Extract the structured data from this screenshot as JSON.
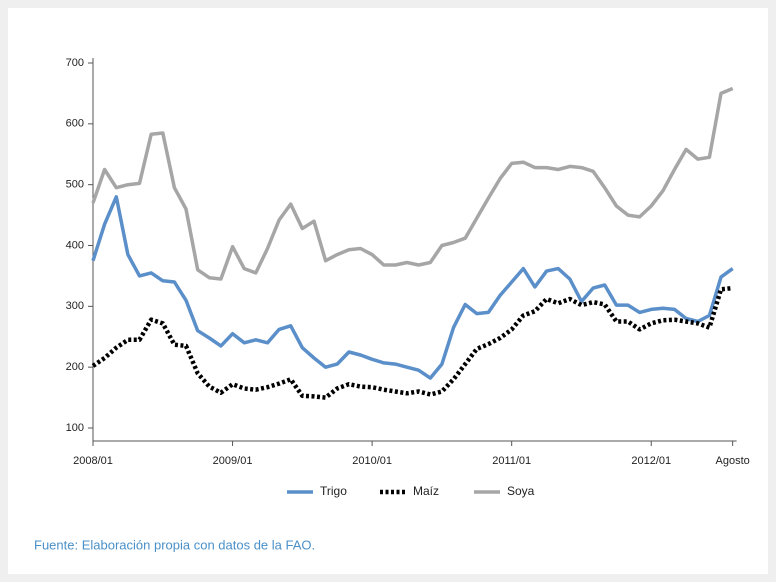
{
  "chart_data": {
    "type": "line",
    "categories": [
      "2008/01",
      null,
      null,
      null,
      null,
      null,
      null,
      null,
      null,
      null,
      null,
      null,
      "2009/01",
      null,
      null,
      null,
      null,
      null,
      null,
      null,
      null,
      null,
      null,
      null,
      "2010/01",
      null,
      null,
      null,
      null,
      null,
      null,
      null,
      null,
      null,
      null,
      null,
      "2011/01",
      null,
      null,
      null,
      null,
      null,
      null,
      null,
      null,
      null,
      null,
      null,
      "2012/01",
      null,
      null,
      null,
      null,
      null,
      null,
      "Agosto"
    ],
    "series": [
      {
        "name": "Trigo",
        "color": "#5b8fc9",
        "style": "solid",
        "values": [
          375,
          435,
          480,
          385,
          350,
          355,
          342,
          340,
          310,
          260,
          248,
          235,
          255,
          240,
          245,
          240,
          262,
          268,
          232,
          215,
          200,
          205,
          225,
          220,
          213,
          207,
          205,
          200,
          195,
          182,
          205,
          265,
          303,
          288,
          290,
          318,
          340,
          362,
          332,
          358,
          362,
          345,
          308,
          330,
          335,
          302,
          302,
          290,
          295,
          297,
          295,
          280,
          275,
          285,
          348,
          362
        ]
      },
      {
        "name": "Maíz",
        "color": "#000000",
        "style": "dotted",
        "values": [
          202,
          215,
          232,
          245,
          245,
          278,
          272,
          237,
          235,
          190,
          168,
          158,
          172,
          165,
          163,
          167,
          173,
          180,
          153,
          152,
          150,
          165,
          172,
          168,
          167,
          163,
          160,
          157,
          160,
          155,
          160,
          180,
          205,
          230,
          238,
          248,
          262,
          285,
          292,
          312,
          305,
          312,
          302,
          307,
          303,
          275,
          275,
          262,
          272,
          277,
          278,
          275,
          272,
          265,
          328,
          330
        ]
      },
      {
        "name": "Soya",
        "color": "#a6a6a6",
        "style": "solid",
        "values": [
          470,
          525,
          495,
          500,
          502,
          583,
          585,
          495,
          460,
          360,
          347,
          345,
          398,
          362,
          355,
          395,
          442,
          468,
          428,
          440,
          375,
          385,
          393,
          395,
          385,
          368,
          368,
          372,
          368,
          372,
          400,
          405,
          412,
          445,
          478,
          510,
          535,
          537,
          528,
          528,
          525,
          530,
          528,
          522,
          495,
          465,
          450,
          447,
          465,
          490,
          525,
          558,
          542,
          545,
          650,
          658
        ]
      }
    ],
    "ylim": [
      100,
      700
    ],
    "yticks": [
      100,
      200,
      300,
      400,
      500,
      600,
      700
    ],
    "legend": "bottom",
    "source": "Fuente: Elaboración propia con datos de la FAO."
  }
}
